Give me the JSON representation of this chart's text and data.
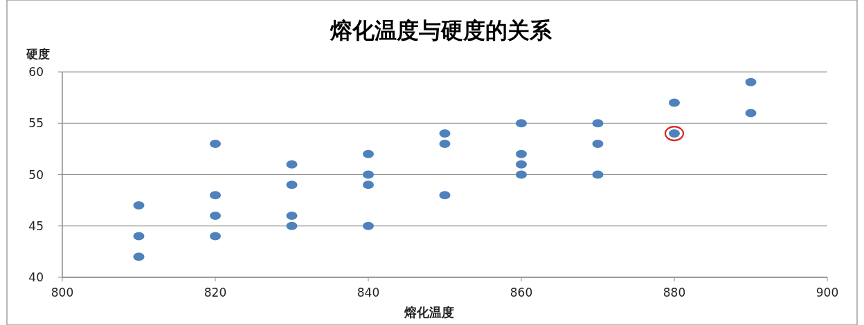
{
  "chart_data": {
    "type": "scatter",
    "title": "熔化温度与硬度的关系",
    "xlabel": "熔化温度",
    "ylabel": "硬度",
    "xlim": [
      800,
      900
    ],
    "xticks": [
      800,
      820,
      840,
      860,
      880,
      900
    ],
    "ylim": [
      40,
      60
    ],
    "yticks": [
      40,
      45,
      50,
      55,
      60
    ],
    "grid": "y",
    "marker": "circle",
    "series": [
      {
        "color": "#4f81bd",
        "x": [
          810,
          810,
          810,
          820,
          820,
          820,
          820,
          830,
          830,
          830,
          830,
          840,
          840,
          840,
          840,
          850,
          850,
          850,
          860,
          860,
          860,
          860,
          870,
          870,
          870,
          880,
          880,
          890,
          890
        ],
        "values": [
          47,
          44,
          42,
          53,
          48,
          46,
          44,
          51,
          49,
          46,
          45,
          52,
          50,
          49,
          45,
          54,
          53,
          48,
          55,
          52,
          51,
          50,
          55,
          53,
          50,
          57,
          54,
          59,
          56
        ]
      },
      {
        "color": "#e02020",
        "x": [
          880
        ],
        "values": [
          54
        ]
      }
    ]
  }
}
